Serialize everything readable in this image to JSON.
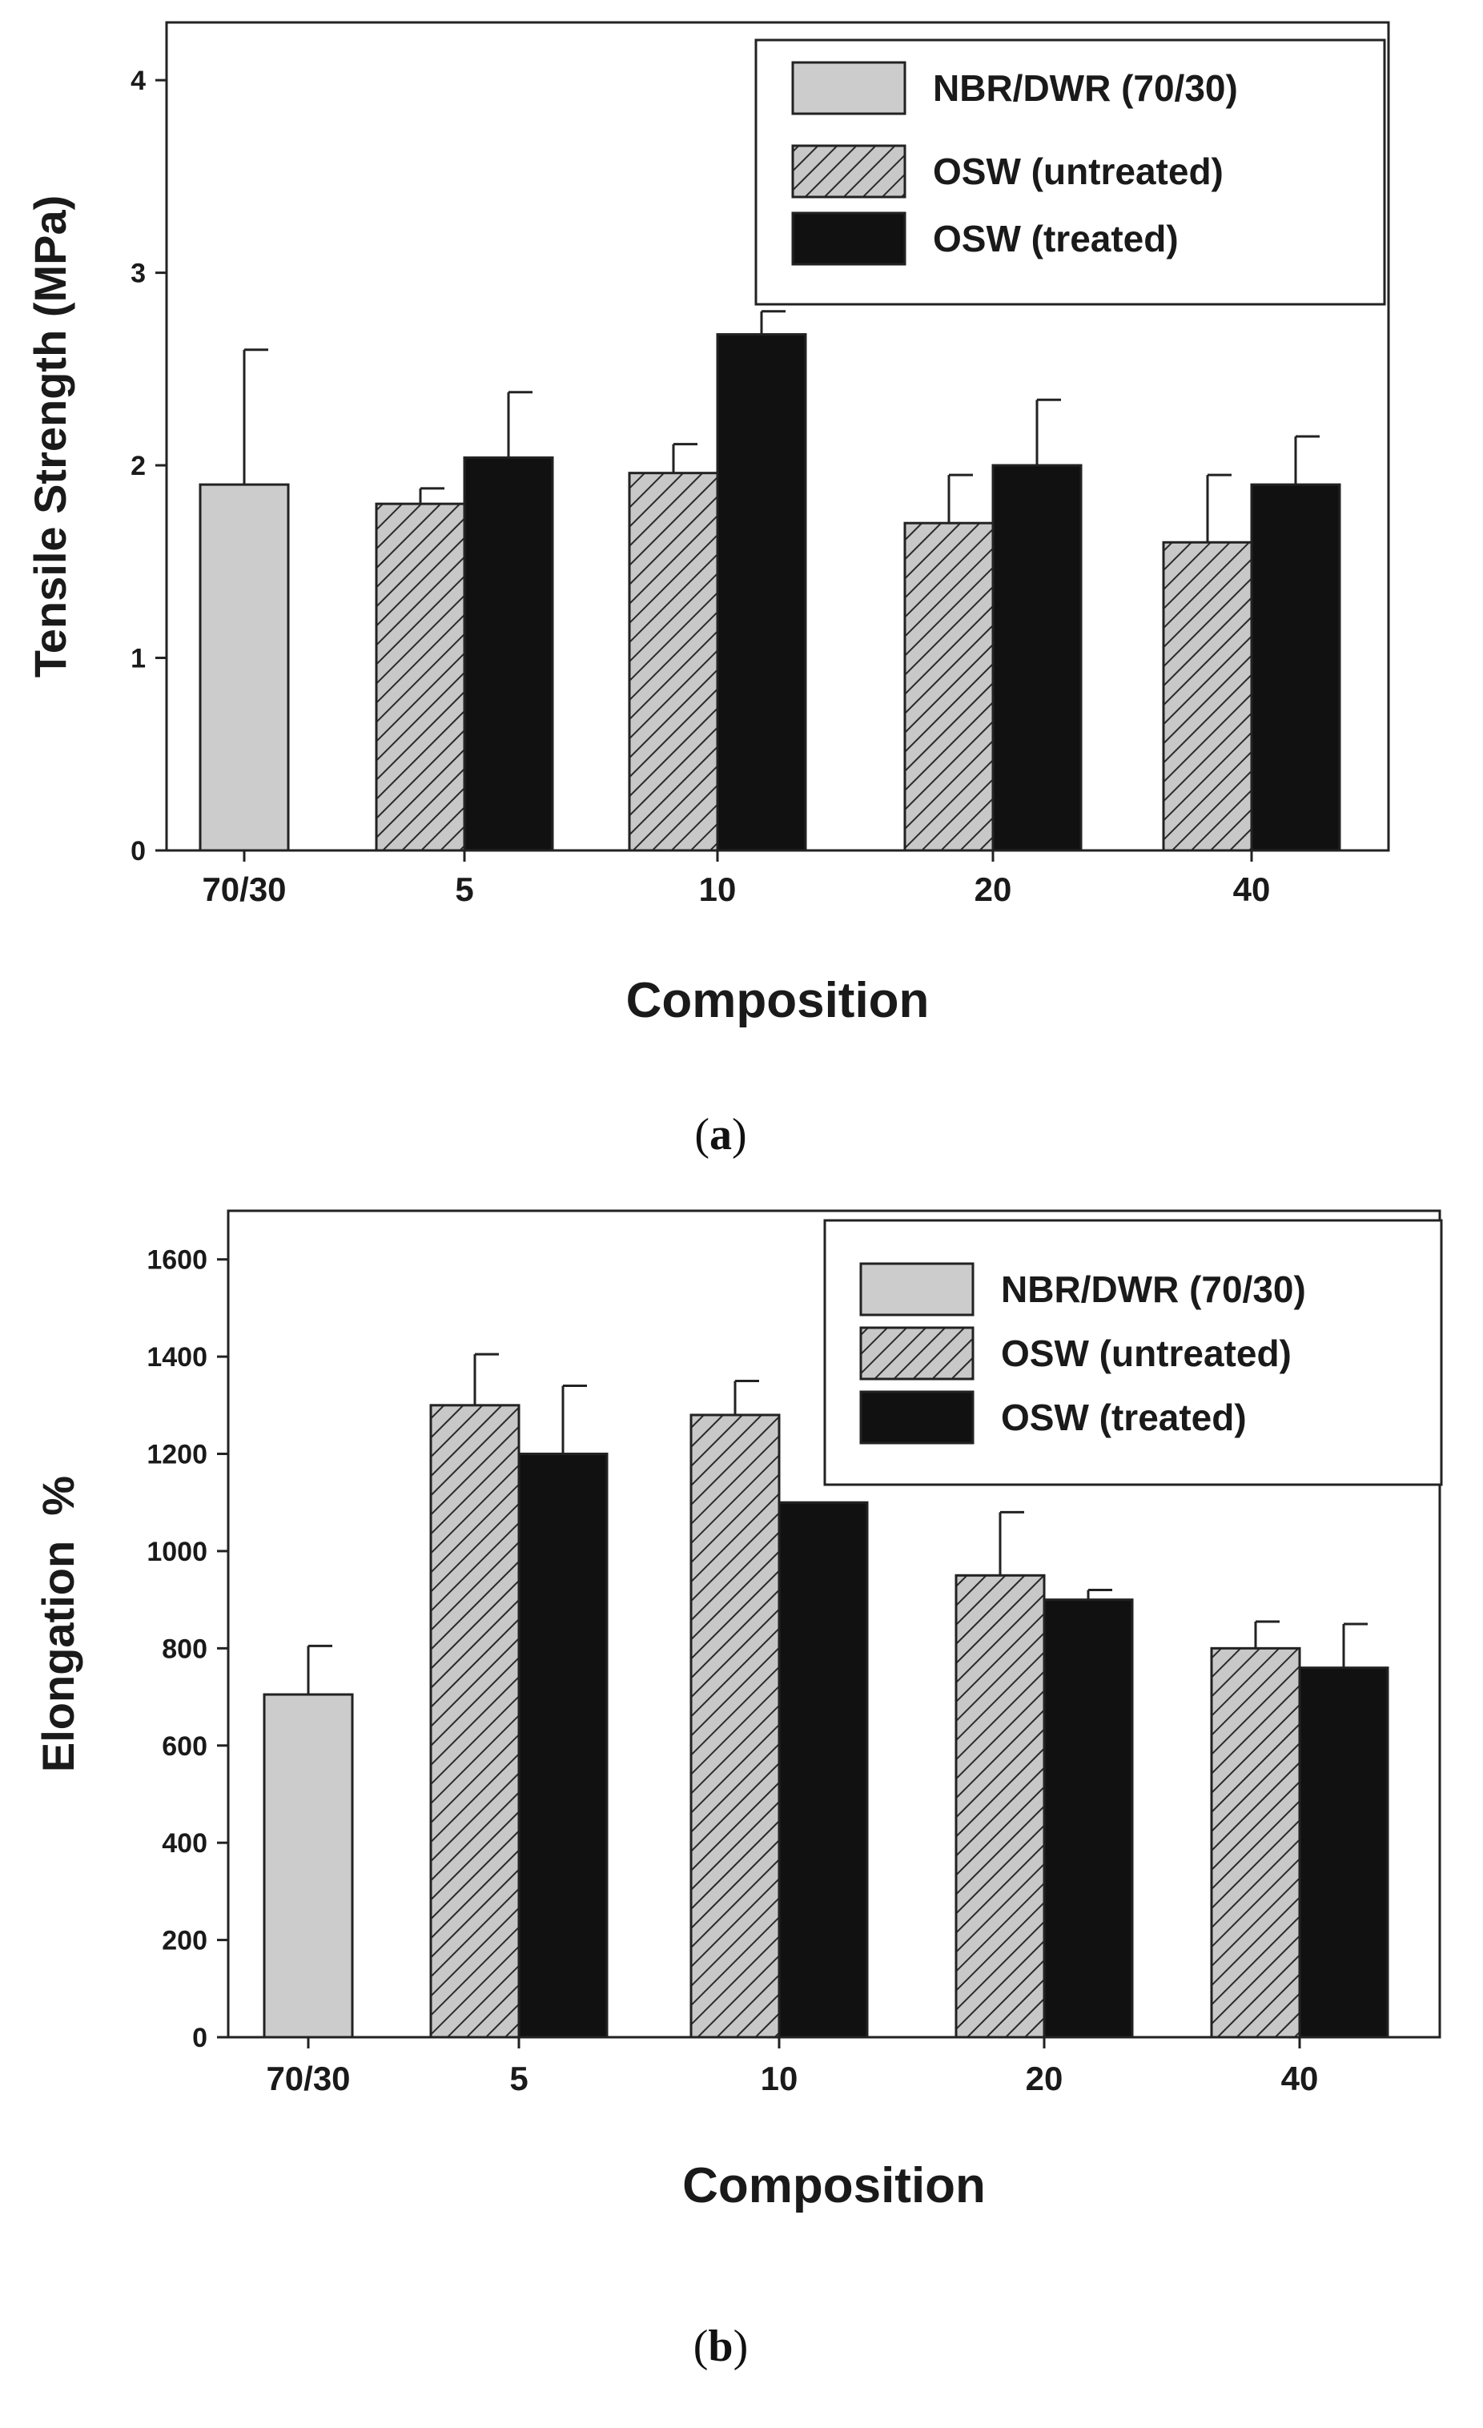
{
  "colors": {
    "control_fill": "#cccccc",
    "untreated_fill": "#c8c8c8",
    "untreated_hatch": "#2a2a2a",
    "treated_fill": "#111111",
    "axis": "#222222"
  },
  "chart_data": [
    {
      "type": "bar",
      "panel_label": "(a)",
      "panel_label_parts": [
        "(",
        "a",
        ")"
      ],
      "xlabel": "Composition",
      "ylabel": "Tensile Strength (MPa)",
      "ylim": [
        0,
        4.3
      ],
      "yticks": [
        0,
        1,
        2,
        3,
        4
      ],
      "ytick_labels": [
        "0",
        "1",
        "2",
        "3",
        "4"
      ],
      "categories": [
        "70/30",
        "5",
        "10",
        "20",
        "40"
      ],
      "legend_position": "top-right",
      "series": [
        {
          "name": "NBR/DWR (70/30)",
          "style": "control",
          "values": [
            1.9,
            null,
            null,
            null,
            null
          ],
          "errors": [
            0.7,
            null,
            null,
            null,
            null
          ]
        },
        {
          "name": "OSW (untreated)",
          "style": "untreated",
          "values": [
            null,
            1.8,
            1.96,
            1.7,
            1.6
          ],
          "errors": [
            null,
            0.08,
            0.15,
            0.25,
            0.35
          ]
        },
        {
          "name": "OSW (treated)",
          "style": "treated",
          "values": [
            null,
            2.04,
            2.68,
            2.0,
            1.9
          ],
          "errors": [
            null,
            0.34,
            0.12,
            0.34,
            0.25
          ]
        }
      ]
    },
    {
      "type": "bar",
      "panel_label": "(b)",
      "panel_label_parts": [
        "(",
        "b",
        ")"
      ],
      "xlabel": "Composition",
      "ylabel": "Elongation  %",
      "ylim": [
        0,
        1700
      ],
      "yticks": [
        0,
        200,
        400,
        600,
        800,
        1000,
        1200,
        1400,
        1600
      ],
      "ytick_labels": [
        "0",
        "200",
        "400",
        "600",
        "800",
        "1000",
        "1200",
        "1400",
        "1600"
      ],
      "categories": [
        "70/30",
        "5",
        "10",
        "20",
        "40"
      ],
      "legend_position": "top-right",
      "series": [
        {
          "name": "NBR/DWR (70/30)",
          "style": "control",
          "values": [
            705,
            null,
            null,
            null,
            null
          ],
          "errors": [
            100,
            null,
            null,
            null,
            null
          ]
        },
        {
          "name": "OSW (untreated)",
          "style": "untreated",
          "values": [
            null,
            1300,
            1280,
            950,
            800
          ],
          "errors": [
            null,
            105,
            70,
            130,
            55
          ]
        },
        {
          "name": "OSW (treated)",
          "style": "treated",
          "values": [
            null,
            1200,
            1100,
            900,
            760
          ],
          "errors": [
            null,
            140,
            null,
            20,
            90
          ]
        }
      ]
    }
  ]
}
